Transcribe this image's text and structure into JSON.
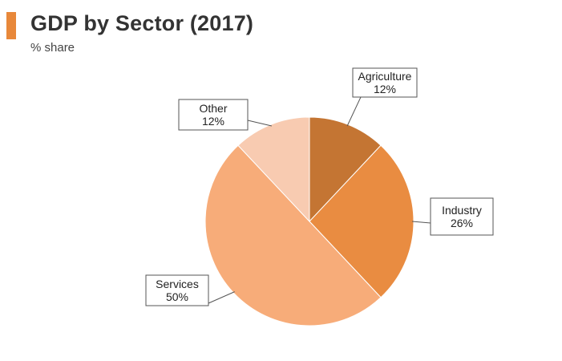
{
  "header": {
    "title": "GDP by Sector (2017)",
    "subtitle": "% share",
    "accent_color": "#e8883a"
  },
  "chart_data": {
    "type": "pie",
    "title": "GDP by Sector (2017)",
    "subtitle": "% share",
    "start_angle_deg": 0,
    "direction": "clockwise",
    "slices": [
      {
        "label": "Agriculture",
        "value": 12,
        "value_label": "12%",
        "color": "#c47533"
      },
      {
        "label": "Industry",
        "value": 26,
        "value_label": "26%",
        "color": "#e98c41"
      },
      {
        "label": "Services",
        "value": 50,
        "value_label": "50%",
        "color": "#f7ac79"
      },
      {
        "label": "Other",
        "value": 12,
        "value_label": "12%",
        "color": "#f8cbb1"
      }
    ]
  }
}
